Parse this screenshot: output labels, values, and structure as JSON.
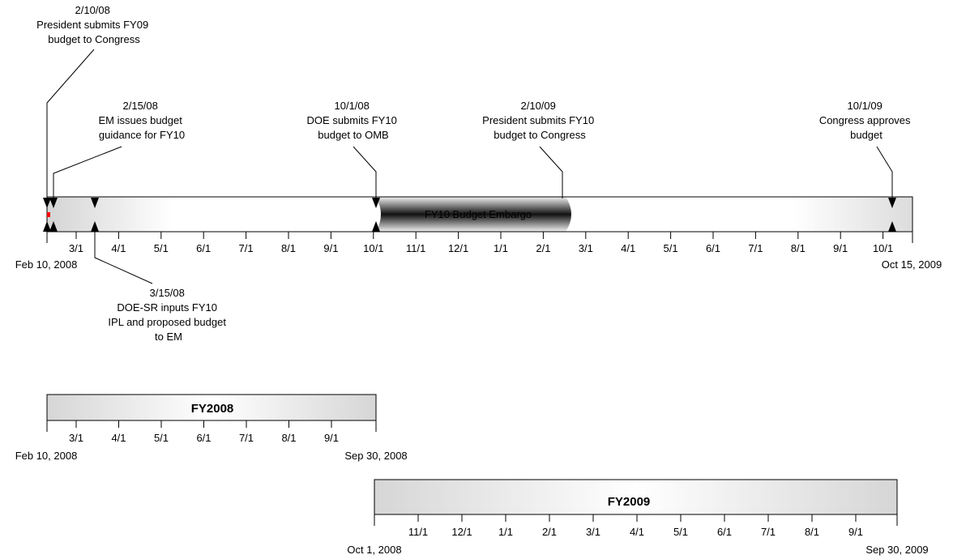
{
  "main_timeline": {
    "start_label": "Feb 10, 2008",
    "end_label": "Oct 15, 2009",
    "month_ticks": [
      "3/1",
      "4/1",
      "5/1",
      "6/1",
      "7/1",
      "8/1",
      "9/1",
      "10/1",
      "11/1",
      "12/1",
      "1/1",
      "2/1",
      "3/1",
      "4/1",
      "5/1",
      "6/1",
      "7/1",
      "8/1",
      "9/1",
      "10/1"
    ],
    "embargo_label": "FY10 Budget Embargo"
  },
  "milestones": [
    {
      "id": "m1",
      "lines": [
        "2/10/08",
        "President submits FY09",
        "budget to Congress"
      ]
    },
    {
      "id": "m2",
      "lines": [
        "2/15/08",
        "EM issues budget",
        "guidance for FY10"
      ]
    },
    {
      "id": "m3",
      "lines": [
        "3/15/08",
        "DOE-SR inputs FY10",
        "IPL and proposed budget",
        "to EM"
      ]
    },
    {
      "id": "m4",
      "lines": [
        "10/1/08",
        "DOE submits FY10",
        "budget to OMB"
      ]
    },
    {
      "id": "m5",
      "lines": [
        "2/10/09",
        "President submits FY10",
        "budget to Congress"
      ]
    },
    {
      "id": "m6",
      "lines": [
        "10/1/09",
        "Congress approves",
        "budget"
      ]
    }
  ],
  "fy2008": {
    "title": "FY2008",
    "start_label": "Feb 10, 2008",
    "end_label": "Sep 30, 2008",
    "month_ticks": [
      "3/1",
      "4/1",
      "5/1",
      "6/1",
      "7/1",
      "8/1",
      "9/1"
    ]
  },
  "fy2009": {
    "title": "FY2009",
    "start_label": "Oct 1, 2008",
    "end_label": "Sep 30, 2009",
    "month_ticks": [
      "11/1",
      "12/1",
      "1/1",
      "2/1",
      "3/1",
      "4/1",
      "5/1",
      "6/1",
      "7/1",
      "8/1",
      "9/1"
    ]
  },
  "colors": {
    "bar_light": "#d6d6d6",
    "bar_white": "#ffffff",
    "embargo_dark": "#1a1a1a",
    "start_marker": "#ff0000"
  }
}
